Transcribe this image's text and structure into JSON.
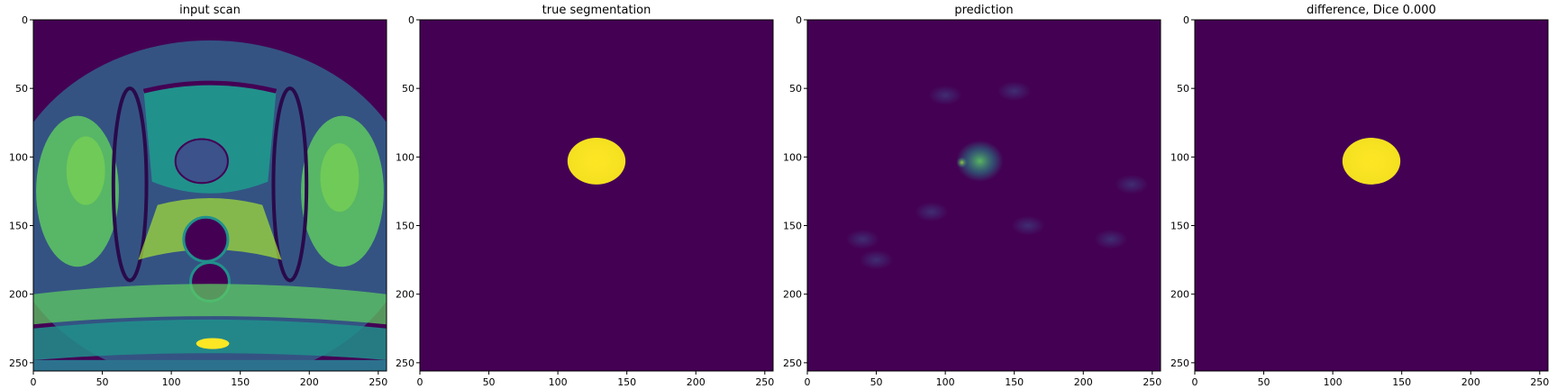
{
  "figure": {
    "panels": [
      {
        "title": "input scan",
        "kind": "mri"
      },
      {
        "title": "true segmentation",
        "kind": "mask"
      },
      {
        "title": "prediction",
        "kind": "pred"
      },
      {
        "title": "difference, Dice 0.000",
        "kind": "mask"
      }
    ],
    "x_ticks": [
      "0",
      "50",
      "100",
      "150",
      "200",
      "250"
    ],
    "y_ticks": [
      "0",
      "50",
      "100",
      "150",
      "200",
      "250"
    ],
    "image_size": 256,
    "colormap": {
      "background": "#440154",
      "low": "#3b528b",
      "mid": "#21918c",
      "high": "#5ec962",
      "max": "#fde725"
    }
  }
}
